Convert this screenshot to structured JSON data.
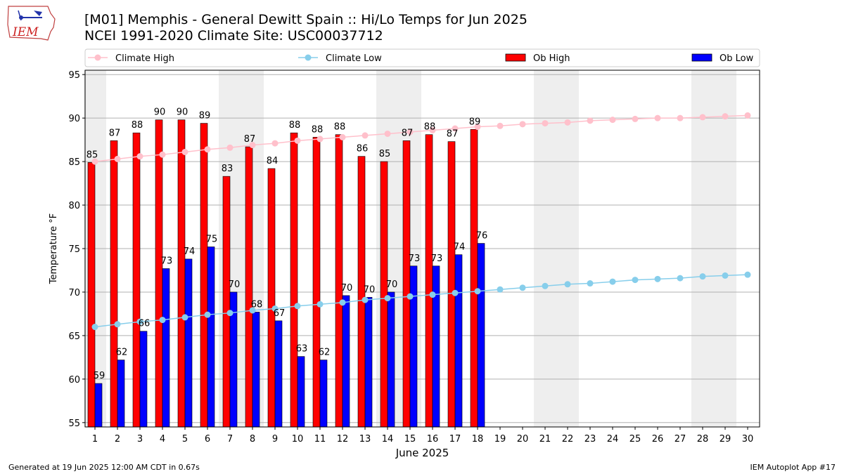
{
  "header": {
    "title_line1": "[M01] Memphis - General Dewitt Spain :: Hi/Lo Temps for Jun 2025",
    "title_line2": "NCEI 1991-2020 Climate Site: USC00037712",
    "logo_text": "IEM"
  },
  "footer": {
    "generated": "Generated at 19 Jun 2025 12:00 AM CDT in 0.67s",
    "app": "IEM Autoplot App #17"
  },
  "colors": {
    "ob_high": "#ff0000",
    "ob_low": "#0000ff",
    "climate_high": "#ffc0cb",
    "climate_low": "#87ceeb",
    "weekend_shade": "#eeeeee",
    "grid": "#b0b0b0"
  },
  "chart_data": {
    "type": "bar",
    "xlabel": "June 2025",
    "ylabel": "Temperature °F",
    "ylim": [
      54.5,
      95.5
    ],
    "yticks": [
      55,
      60,
      65,
      70,
      75,
      80,
      85,
      90,
      95
    ],
    "grid": "horizontal",
    "legend_position": "top",
    "days": [
      1,
      2,
      3,
      4,
      5,
      6,
      7,
      8,
      9,
      10,
      11,
      12,
      13,
      14,
      15,
      16,
      17,
      18,
      19,
      20,
      21,
      22,
      23,
      24,
      25,
      26,
      27,
      28,
      29,
      30
    ],
    "weekend_shaded_days": [
      1,
      7,
      8,
      14,
      15,
      21,
      22,
      28,
      29
    ],
    "series": [
      {
        "name": "Climate High",
        "kind": "line",
        "values": [
          85.0,
          85.3,
          85.6,
          85.8,
          86.1,
          86.4,
          86.6,
          86.9,
          87.1,
          87.4,
          87.6,
          87.8,
          88.0,
          88.2,
          88.4,
          88.6,
          88.8,
          89.0,
          89.1,
          89.3,
          89.4,
          89.5,
          89.7,
          89.8,
          89.9,
          90.0,
          90.0,
          90.1,
          90.2,
          90.3
        ]
      },
      {
        "name": "Climate Low",
        "kind": "line",
        "values": [
          66.0,
          66.3,
          66.6,
          66.8,
          67.1,
          67.4,
          67.6,
          67.9,
          68.1,
          68.4,
          68.6,
          68.8,
          69.1,
          69.3,
          69.5,
          69.7,
          69.9,
          70.1,
          70.3,
          70.5,
          70.7,
          70.9,
          71.0,
          71.2,
          71.4,
          71.5,
          71.6,
          71.8,
          71.9,
          72.0
        ]
      },
      {
        "name": "Ob High",
        "kind": "bar",
        "values": [
          85,
          87,
          88,
          90,
          90,
          89,
          83,
          87,
          84,
          88,
          88,
          88,
          86,
          85,
          87,
          88,
          87,
          89
        ],
        "bar_values": [
          84.9,
          87.4,
          88.3,
          89.8,
          89.8,
          89.4,
          83.3,
          86.7,
          84.2,
          88.3,
          87.8,
          88.1,
          85.6,
          85.0,
          87.4,
          88.1,
          87.3,
          88.7
        ]
      },
      {
        "name": "Ob Low",
        "kind": "bar",
        "values": [
          59,
          62,
          66,
          73,
          74,
          75,
          70,
          68,
          67,
          63,
          62,
          70,
          70,
          70,
          73,
          73,
          74,
          76
        ],
        "bar_values": [
          59.5,
          62.2,
          65.5,
          72.7,
          73.8,
          75.2,
          70.0,
          67.7,
          66.7,
          62.6,
          62.2,
          69.6,
          69.4,
          70.0,
          73.0,
          73.0,
          74.3,
          75.6
        ]
      }
    ]
  }
}
